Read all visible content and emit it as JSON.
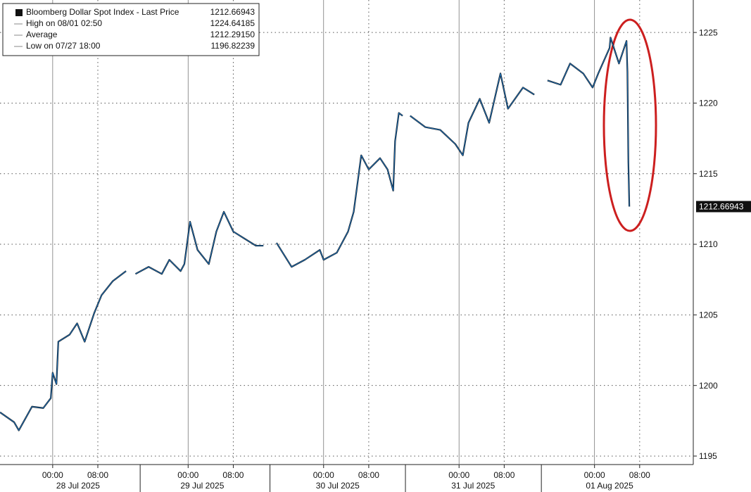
{
  "chart_data": {
    "type": "line",
    "legend_entries": [
      {
        "label": "Bloomberg Dollar Spot Index - Last Price",
        "value": "1212.66943"
      },
      {
        "label": "High on 08/01 02:50",
        "value": "1224.64185"
      },
      {
        "label": "Average",
        "value": "1212.29150"
      },
      {
        "label": "Low on 07/27 18:00",
        "value": "1196.82239"
      }
    ],
    "last_value": 1212.66943,
    "x": [
      "2025-07-27T14:40",
      "2025-07-27T17:10",
      "2025-07-27T18:00",
      "2025-07-27T20:20",
      "2025-07-27T22:20",
      "2025-07-27T23:40",
      "2025-07-28T00:00",
      "2025-07-28T00:40",
      "2025-07-28T01:00",
      "2025-07-28T03:00",
      "2025-07-28T04:20",
      "2025-07-28T05:40",
      "2025-07-28T07:20",
      "2025-07-28T08:40",
      "2025-07-28T10:40",
      "2025-07-28T13:00",
      "2025-07-28T14:00",
      "2025-07-28T14:40",
      "2025-07-28T17:00",
      "2025-07-28T19:20",
      "2025-07-28T20:40",
      "2025-07-28T22:40",
      "2025-07-28T23:20",
      "2025-07-29T00:20",
      "2025-07-29T01:40",
      "2025-07-29T03:40",
      "2025-07-29T05:00",
      "2025-07-29T06:20",
      "2025-07-29T08:00",
      "2025-07-29T10:00",
      "2025-07-29T12:00",
      "2025-07-29T13:20",
      "2025-07-29T14:40",
      "2025-07-29T15:40",
      "2025-07-29T18:20",
      "2025-07-29T20:40",
      "2025-07-29T23:20",
      "2025-07-30T00:00",
      "2025-07-30T02:20",
      "2025-07-30T04:20",
      "2025-07-30T05:20",
      "2025-07-30T06:40",
      "2025-07-30T08:00",
      "2025-07-30T10:00",
      "2025-07-30T11:20",
      "2025-07-30T12:20",
      "2025-07-30T12:40",
      "2025-07-30T13:20",
      "2025-07-30T14:00",
      "2025-07-30T14:40",
      "2025-07-30T15:20",
      "2025-07-30T18:00",
      "2025-07-30T20:40",
      "2025-07-30T23:20",
      "2025-07-31T00:40",
      "2025-07-31T01:40",
      "2025-07-31T03:40",
      "2025-07-31T05:20",
      "2025-07-31T07:20",
      "2025-07-31T08:40",
      "2025-07-31T11:20",
      "2025-07-31T13:20",
      "2025-07-31T14:20",
      "2025-07-31T15:40",
      "2025-07-31T18:00",
      "2025-07-31T19:40",
      "2025-07-31T22:00",
      "2025-07-31T23:40",
      "2025-08-01T00:40",
      "2025-08-01T02:40",
      "2025-08-01T02:50",
      "2025-08-01T04:20",
      "2025-08-01T05:40",
      "2025-08-01T05:50",
      "2025-08-01T06:00",
      "2025-08-01T06:10"
    ],
    "series": [
      {
        "color": "#1f6fb5",
        "values": [
          1198.1,
          1197.4,
          1196.82,
          1198.5,
          1198.4,
          1199.1,
          1200.9,
          1200.1,
          1203.1,
          1203.6,
          1204.4,
          1203.1,
          1205.1,
          1206.4,
          1207.4,
          1208.1,
          null,
          1207.9,
          1208.4,
          1207.9,
          1208.9,
          1208.1,
          1208.6,
          1211.6,
          1209.6,
          1208.6,
          1210.9,
          1212.3,
          1210.9,
          1210.4,
          1209.9,
          1209.9,
          null,
          1210.1,
          1208.4,
          1208.9,
          1209.6,
          1208.9,
          1209.4,
          1210.9,
          1212.3,
          1216.3,
          1215.3,
          1216.1,
          1215.3,
          1213.8,
          1217.3,
          1219.3,
          1219.1,
          null,
          1219.1,
          1218.3,
          1218.1,
          1217.1,
          1216.3,
          1218.6,
          1220.3,
          1218.6,
          1222.1,
          1219.6,
          1221.1,
          1220.6,
          null,
          1221.6,
          1221.3,
          1222.8,
          1222.1,
          1221.1,
          1222.1,
          1223.9,
          1224.64,
          1222.8,
          1224.4,
          1222.2,
          1215.8,
          1212.67
        ]
      }
    ],
    "xlim": [
      "2025-07-27T14:40",
      "2025-08-01T17:30"
    ],
    "xticks": [
      {
        "value": "2025-07-28T00:00",
        "label": "00:00"
      },
      {
        "value": "2025-07-28T08:00",
        "label": "08:00"
      },
      {
        "value": "2025-07-29T00:00",
        "label": "00:00"
      },
      {
        "value": "2025-07-29T08:00",
        "label": "08:00"
      },
      {
        "value": "2025-07-30T00:00",
        "label": "00:00"
      },
      {
        "value": "2025-07-30T08:00",
        "label": "08:00"
      },
      {
        "value": "2025-07-31T00:00",
        "label": "00:00"
      },
      {
        "value": "2025-07-31T08:00",
        "label": "08:00"
      },
      {
        "value": "2025-08-01T00:00",
        "label": "00:00"
      },
      {
        "value": "2025-08-01T08:00",
        "label": "08:00"
      }
    ],
    "date_labels": [
      {
        "value": "2025-07-28T04:30",
        "label": "28 Jul 2025"
      },
      {
        "value": "2025-07-29T02:30",
        "label": "29 Jul 2025"
      },
      {
        "value": "2025-07-30T02:30",
        "label": "30 Jul 2025"
      },
      {
        "value": "2025-07-31T02:30",
        "label": "31 Jul 2025"
      },
      {
        "value": "2025-08-01T02:40",
        "label": "01 Aug 2025"
      }
    ],
    "ylim": [
      1194.4,
      1227.3
    ],
    "yticks": [
      1195,
      1200,
      1205,
      1210,
      1215,
      1220,
      1225
    ],
    "grid": true
  }
}
